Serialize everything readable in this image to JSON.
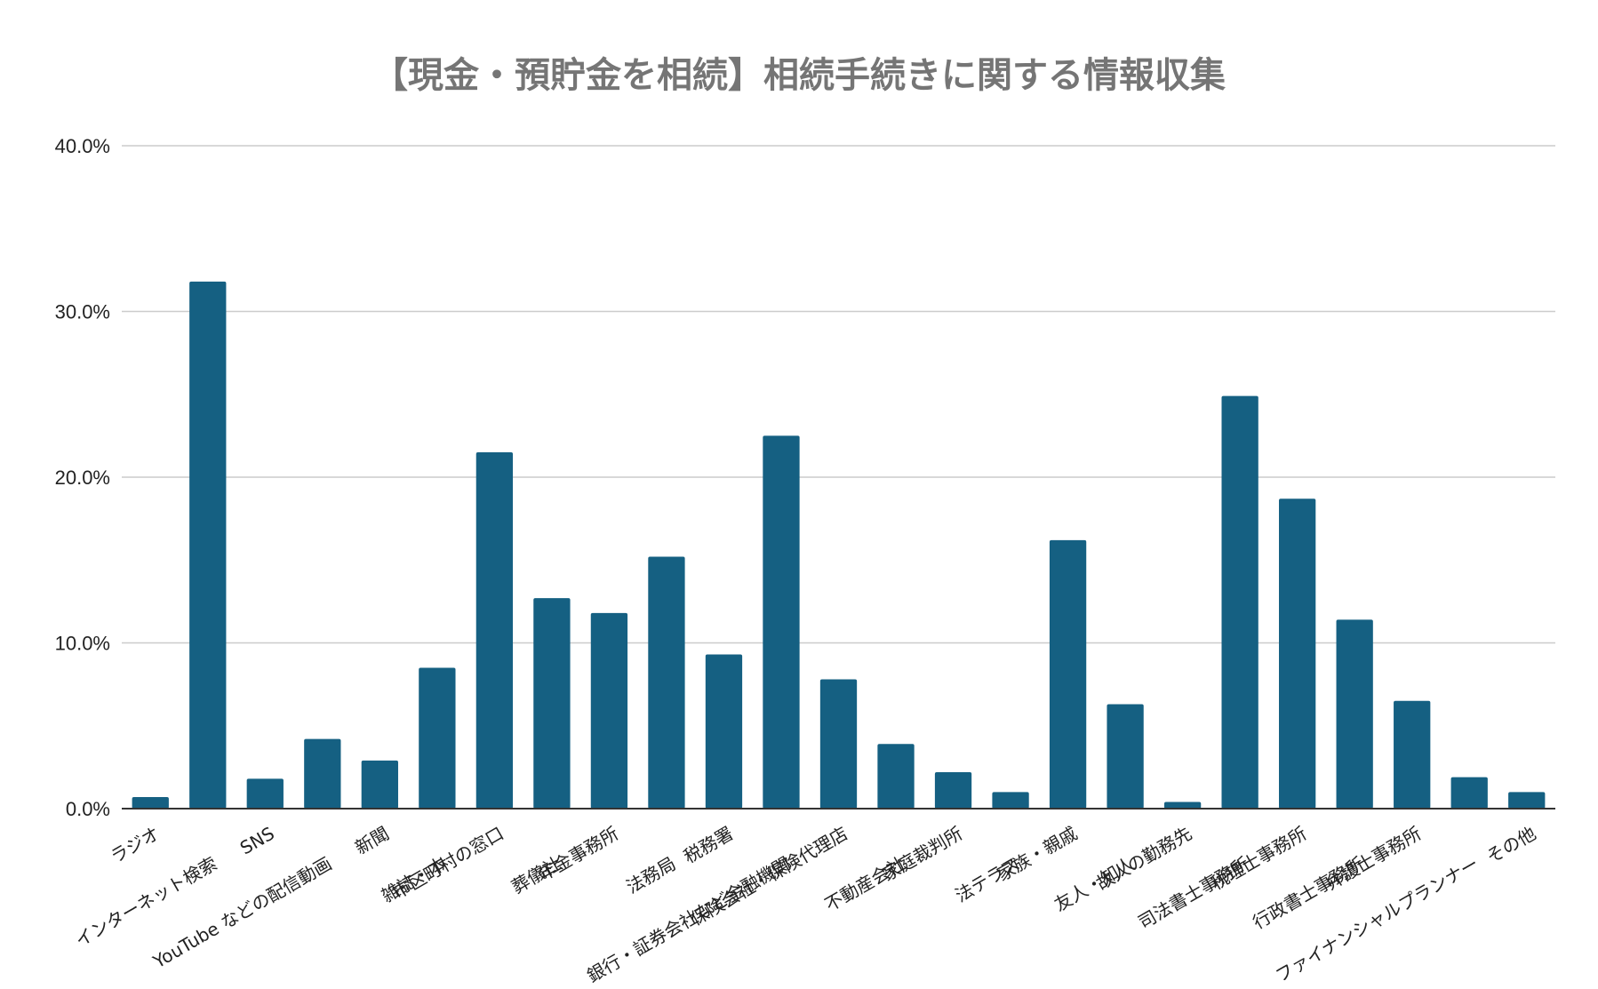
{
  "chart_data": {
    "type": "bar",
    "title": "【現金・預貯金を相続】相続手続きに関する情報収集",
    "xlabel": "",
    "ylabel": "",
    "ylim": [
      0,
      40
    ],
    "yticks": [
      "0.0%",
      "10.0%",
      "20.0%",
      "30.0%",
      "40.0%"
    ],
    "grid": true,
    "legend": "none",
    "bar_color": "#156082",
    "categories": [
      "ラジオ",
      "インターネット検索",
      "SNS",
      "YouTube などの配信動画",
      "新聞",
      "雑誌・本",
      "市区町村の窓口",
      "葬儀社",
      "年金事務所",
      "法務局",
      "税務署",
      "銀行・証券会社など金融機関",
      "保険会社・保険代理店",
      "不動産会社",
      "家庭裁判所",
      "法テラス",
      "家族・親戚",
      "友人・知人",
      "故人の勤務先",
      "司法書士事務所",
      "税理士事務所",
      "行政書士事務所",
      "弁護士事務所",
      "ファイナンシャルプランナー",
      "その他"
    ],
    "values": [
      0.7,
      31.8,
      1.8,
      4.2,
      2.9,
      8.5,
      21.5,
      12.7,
      11.8,
      15.2,
      9.3,
      22.5,
      7.8,
      3.9,
      2.2,
      1.0,
      16.2,
      6.3,
      0.4,
      24.9,
      18.7,
      11.4,
      6.5,
      1.9,
      1.0
    ]
  }
}
